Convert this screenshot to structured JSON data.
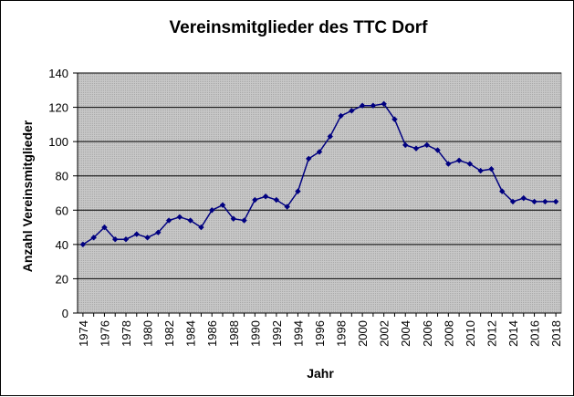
{
  "chart_data": {
    "type": "line",
    "title": "Vereinsmitglieder  des  TTC Dorf",
    "xlabel": "Jahr",
    "ylabel": "Anzahl Vereinsmitglieder",
    "ylim": [
      0,
      140
    ],
    "yticks": [
      0,
      20,
      40,
      60,
      80,
      100,
      120,
      140
    ],
    "xticks": [
      1974,
      1976,
      1978,
      1980,
      1982,
      1984,
      1986,
      1988,
      1990,
      1992,
      1994,
      1996,
      1998,
      2000,
      2002,
      2004,
      2006,
      2008,
      2010,
      2012,
      2014,
      2016,
      2018
    ],
    "grid": "horizontal",
    "legend": "none",
    "colors": {
      "line": "#000080",
      "plot_bg": "#c0c0c0",
      "gridline": "#000000"
    },
    "x": [
      1974,
      1975,
      1976,
      1977,
      1978,
      1979,
      1980,
      1981,
      1982,
      1983,
      1984,
      1985,
      1986,
      1987,
      1988,
      1989,
      1990,
      1991,
      1992,
      1993,
      1994,
      1995,
      1996,
      1997,
      1998,
      1999,
      2000,
      2001,
      2002,
      2003,
      2004,
      2005,
      2006,
      2007,
      2008,
      2009,
      2010,
      2011,
      2012,
      2013,
      2014,
      2015,
      2016,
      2017,
      2018
    ],
    "values": [
      40,
      44,
      50,
      43,
      43,
      46,
      44,
      47,
      54,
      56,
      54,
      50,
      60,
      63,
      55,
      54,
      66,
      68,
      66,
      62,
      71,
      90,
      94,
      103,
      115,
      118,
      121,
      121,
      122,
      113,
      98,
      96,
      98,
      95,
      87,
      89,
      87,
      83,
      84,
      71,
      65,
      67,
      65,
      65,
      65
    ]
  }
}
